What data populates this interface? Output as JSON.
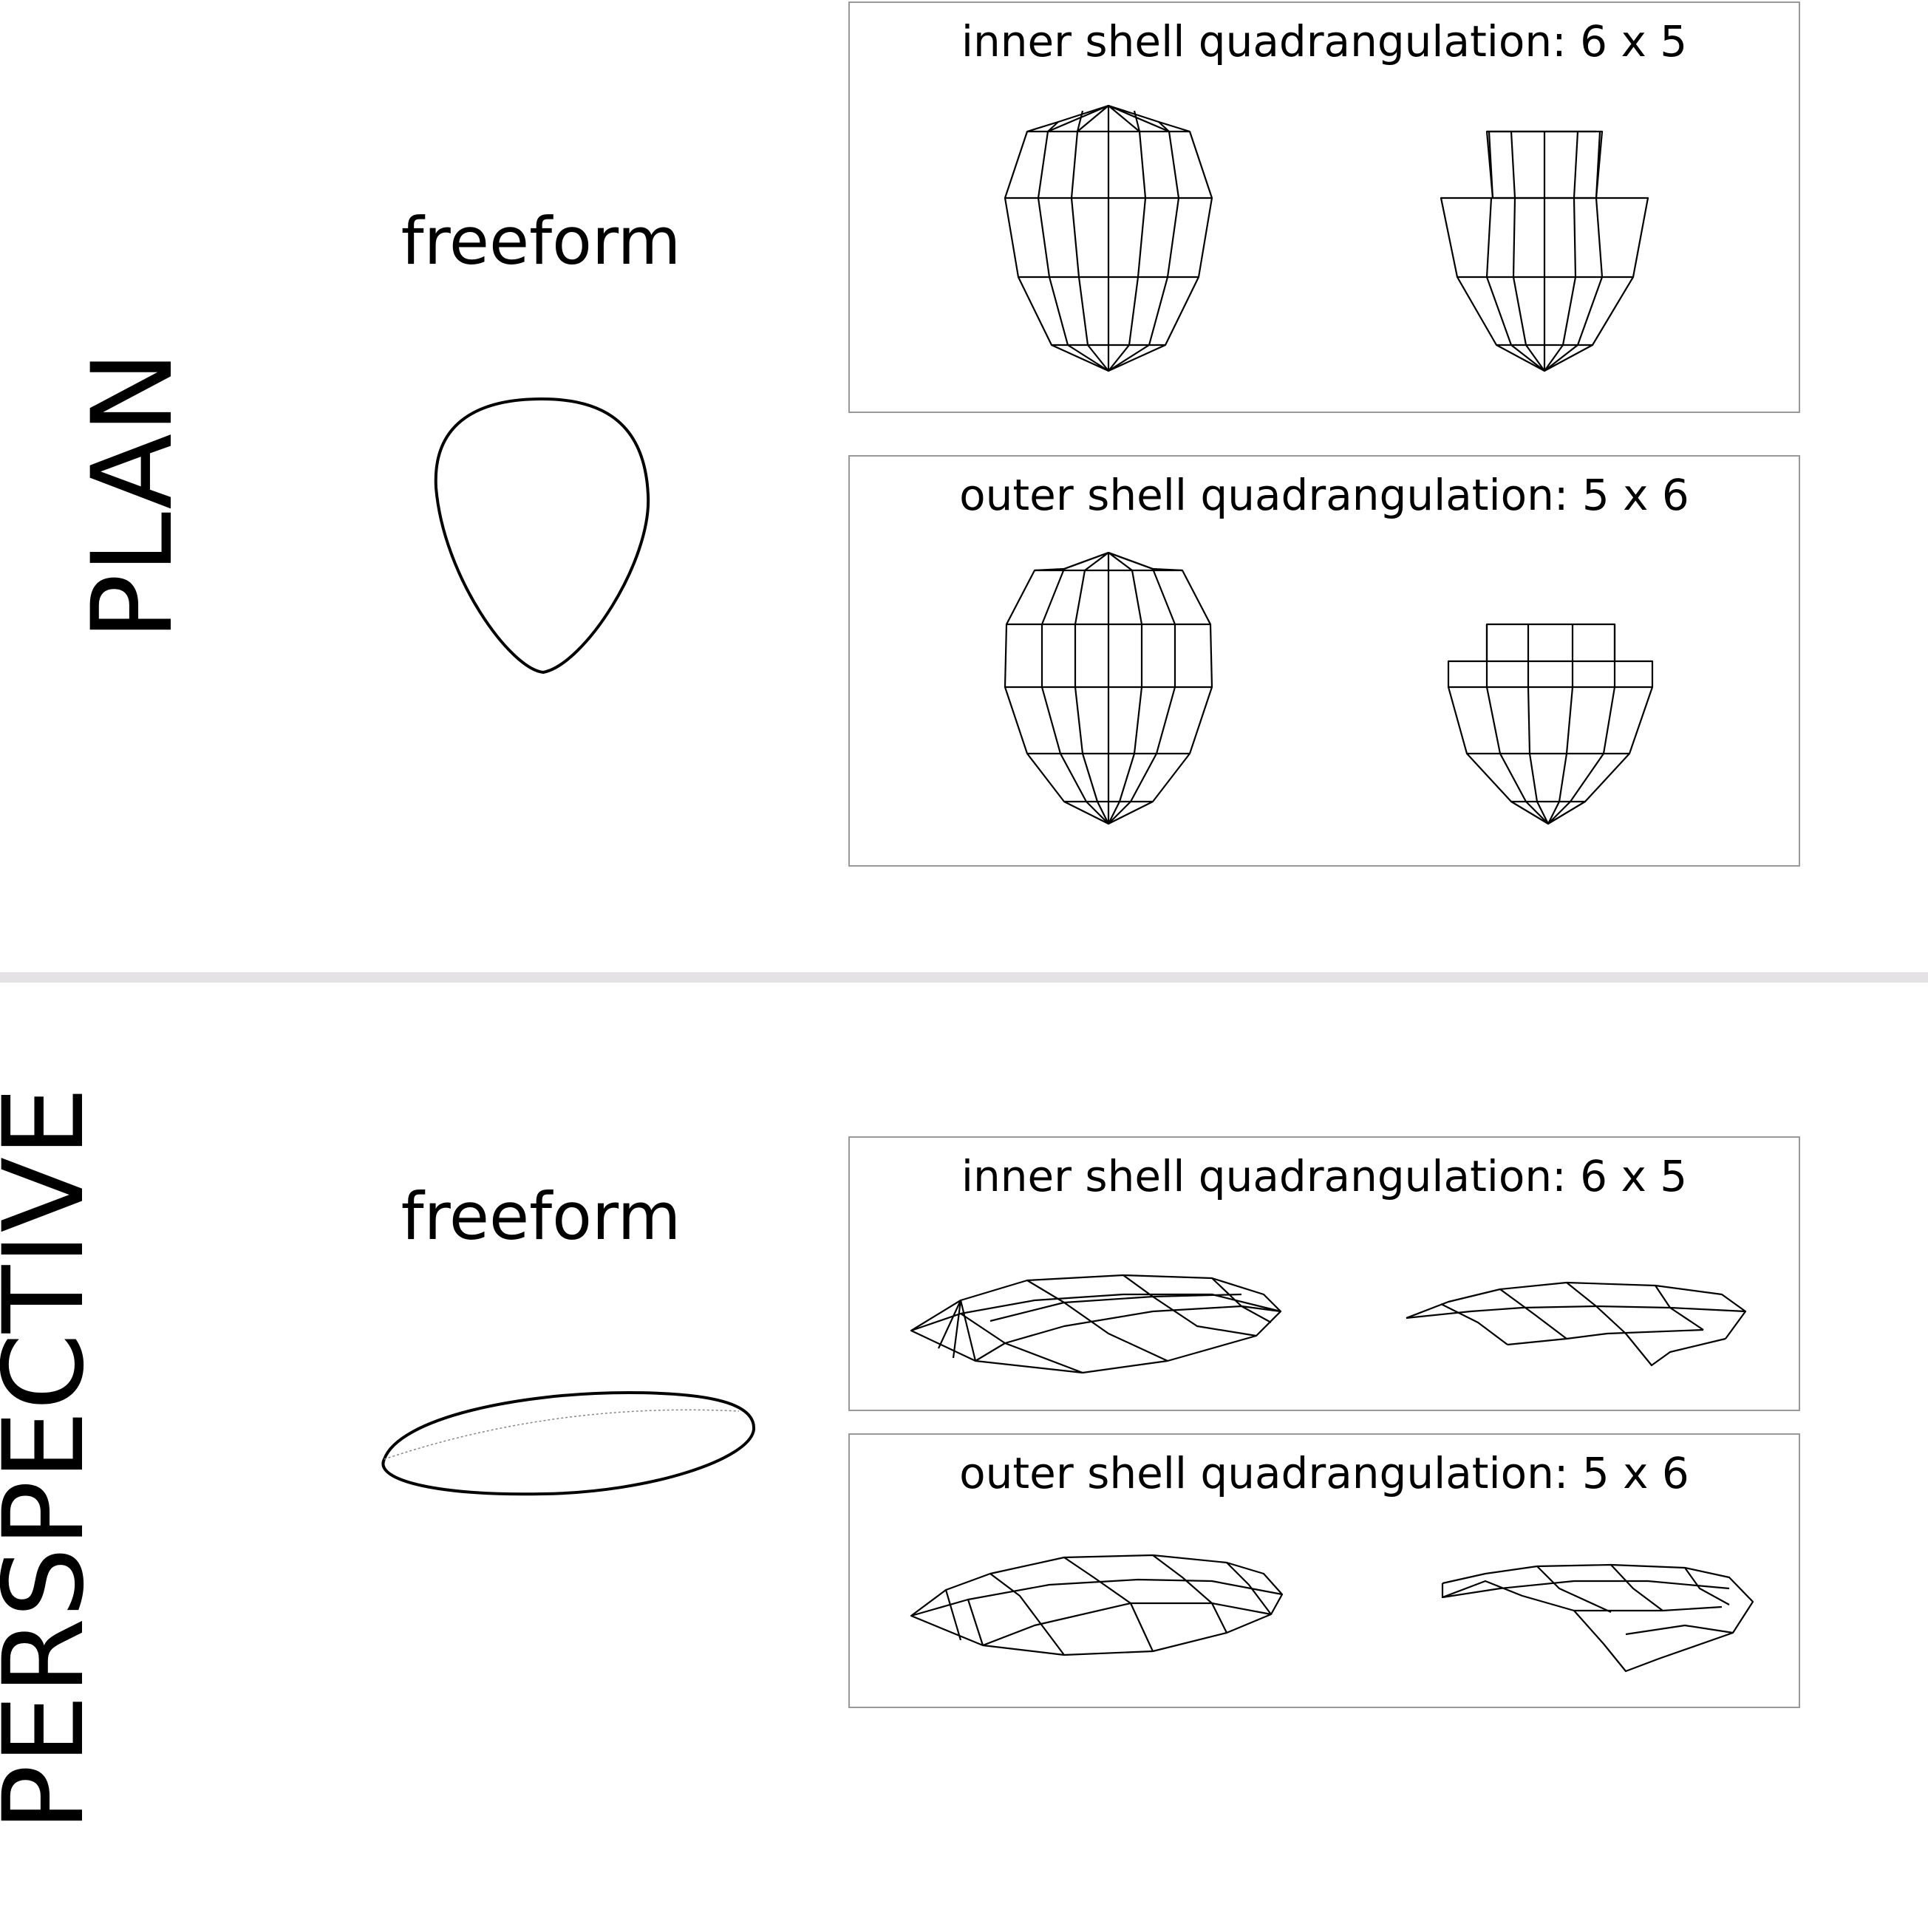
{
  "sections": {
    "plan": {
      "label": "PLAN",
      "freeform_title": "freeform",
      "inner_panel": {
        "title": "inner shell quadrangulation: 6 x 5"
      },
      "outer_panel": {
        "title": "outer shell quadrangulation: 5 x 6"
      }
    },
    "perspective": {
      "label": "PERSPECTIVE",
      "freeform_title": "freeform",
      "inner_panel": {
        "title": "inner shell quadrangulation: 6 x 5"
      },
      "outer_panel": {
        "title": "outer shell quadrangulation: 5 x 6"
      }
    }
  },
  "colors": {
    "line": "#000000",
    "panel_border": "#999999",
    "divider": "#e4e2e4"
  }
}
